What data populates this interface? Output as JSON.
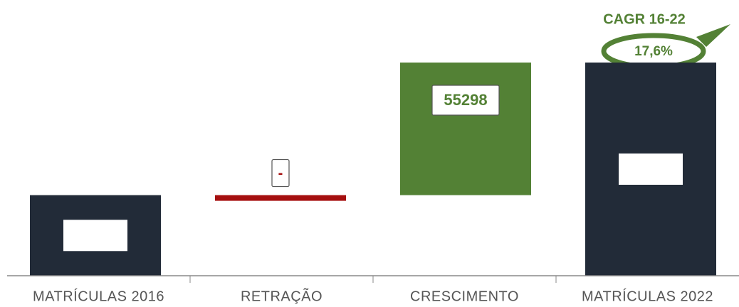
{
  "chart_data": {
    "type": "waterfall",
    "categories": [
      "MATRÍCULAS 2016",
      "RETRAÇÃO",
      "CRESCIMENTO",
      "MATRÍCULAS 2022"
    ],
    "measures": [
      "absolute",
      "relative",
      "relative",
      "total"
    ],
    "values": [
      33617,
      0,
      55298,
      88915
    ],
    "value_labels": [
      null,
      "-",
      "55298",
      null
    ],
    "colors": [
      "#222b38",
      "#a50f0f",
      "#538135",
      "#222b38"
    ],
    "ylim": [
      0,
      115000
    ],
    "annotations": [
      "CAGR 16-22",
      "17,6%"
    ]
  }
}
